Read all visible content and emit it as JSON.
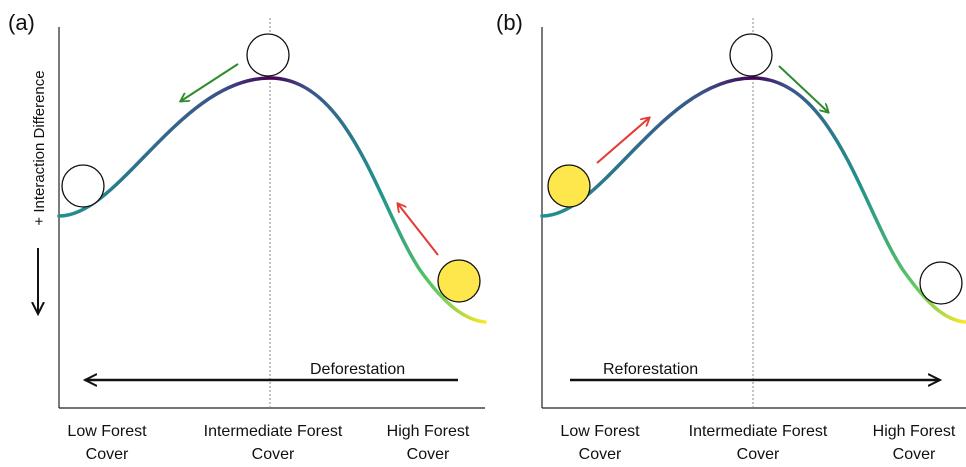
{
  "panels": [
    {
      "label": "(a)",
      "y_axis_label": "+ Interaction Difference",
      "x_ticks": [
        {
          "line1": "Low Forest",
          "line2": "Cover"
        },
        {
          "line1": "Intermediate Forest",
          "line2": "Cover"
        },
        {
          "line1": "High Forest",
          "line2": "Cover"
        }
      ],
      "process_label": "Deforestation",
      "process_direction": "toward low forest cover",
      "balls": [
        {
          "position": "low forest cover",
          "fill": "#ffffff"
        },
        {
          "position": "peak",
          "fill": "#ffffff"
        },
        {
          "position": "high forest cover",
          "fill": "#fde74c"
        }
      ],
      "arrows": [
        {
          "color": "#e53935",
          "meaning": "uphill push"
        },
        {
          "color": "#2e8b2e",
          "meaning": "downhill roll"
        }
      ]
    },
    {
      "label": "(b)",
      "y_axis_label": "",
      "x_ticks": [
        {
          "line1": "Low Forest",
          "line2": "Cover"
        },
        {
          "line1": "Intermediate Forest",
          "line2": "Cover"
        },
        {
          "line1": "High Forest",
          "line2": "Cover"
        }
      ],
      "process_label": "Reforestation",
      "process_direction": "toward high forest cover",
      "balls": [
        {
          "position": "low forest cover",
          "fill": "#fde74c"
        },
        {
          "position": "peak",
          "fill": "#ffffff"
        },
        {
          "position": "high forest cover",
          "fill": "#ffffff"
        }
      ],
      "arrows": [
        {
          "color": "#e53935",
          "meaning": "uphill push"
        },
        {
          "color": "#2e8b2e",
          "meaning": "downhill roll"
        }
      ]
    }
  ],
  "colors": {
    "curve_gradient": [
      "#fde725",
      "#5ec962",
      "#21918c",
      "#3b528b",
      "#440154"
    ],
    "axis": "#222222",
    "guide_line": "#888888"
  }
}
